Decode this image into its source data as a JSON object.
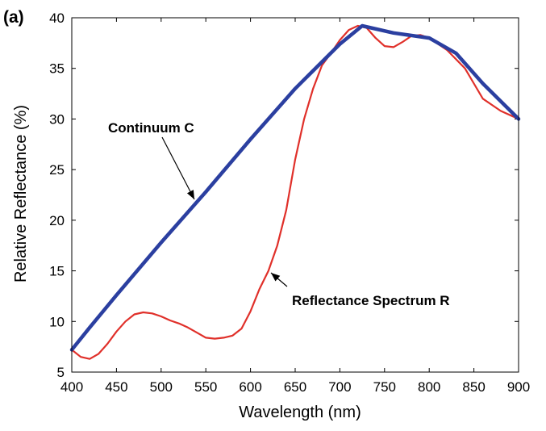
{
  "panel_label": "(a)",
  "chart_data": {
    "type": "line",
    "title": "",
    "xlabel": "Wavelength (nm)",
    "ylabel": "Relative Reflectance (%)",
    "xlim": [
      400,
      900
    ],
    "ylim": [
      5,
      40
    ],
    "xticks": [
      400,
      450,
      500,
      550,
      600,
      650,
      700,
      750,
      800,
      850,
      900
    ],
    "yticks": [
      5,
      10,
      15,
      20,
      25,
      30,
      35,
      40
    ],
    "grid": false,
    "legend": "none",
    "series": [
      {
        "key": "continuum",
        "color": "#2b3fa0",
        "points": [
          [
            400,
            7.2
          ],
          [
            420,
            9.4
          ],
          [
            450,
            12.6
          ],
          [
            500,
            17.8
          ],
          [
            550,
            22.8
          ],
          [
            600,
            28
          ],
          [
            650,
            33
          ],
          [
            700,
            37.4
          ],
          [
            725,
            39.2
          ],
          [
            760,
            38.5
          ],
          [
            800,
            38
          ],
          [
            830,
            36.5
          ],
          [
            860,
            33.5
          ],
          [
            900,
            30
          ]
        ]
      },
      {
        "key": "reflectance",
        "color": "#e0302a",
        "points": [
          [
            400,
            7.2
          ],
          [
            410,
            6.5
          ],
          [
            420,
            6.3
          ],
          [
            430,
            6.8
          ],
          [
            440,
            7.8
          ],
          [
            450,
            9
          ],
          [
            460,
            10
          ],
          [
            470,
            10.7
          ],
          [
            480,
            10.9
          ],
          [
            490,
            10.8
          ],
          [
            500,
            10.5
          ],
          [
            510,
            10.1
          ],
          [
            520,
            9.8
          ],
          [
            530,
            9.4
          ],
          [
            540,
            8.9
          ],
          [
            550,
            8.4
          ],
          [
            560,
            8.3
          ],
          [
            570,
            8.4
          ],
          [
            580,
            8.6
          ],
          [
            590,
            9.3
          ],
          [
            600,
            11
          ],
          [
            610,
            13.2
          ],
          [
            620,
            15
          ],
          [
            630,
            17.5
          ],
          [
            640,
            21
          ],
          [
            650,
            26
          ],
          [
            660,
            30
          ],
          [
            670,
            33
          ],
          [
            680,
            35.3
          ],
          [
            690,
            36.5
          ],
          [
            700,
            37.8
          ],
          [
            710,
            38.8
          ],
          [
            720,
            39.2
          ],
          [
            730,
            39
          ],
          [
            740,
            38
          ],
          [
            750,
            37.2
          ],
          [
            760,
            37.1
          ],
          [
            770,
            37.6
          ],
          [
            780,
            38.2
          ],
          [
            790,
            38.3
          ],
          [
            800,
            38
          ],
          [
            820,
            36.8
          ],
          [
            840,
            35
          ],
          [
            850,
            33.5
          ],
          [
            860,
            32
          ],
          [
            880,
            30.8
          ],
          [
            900,
            30
          ]
        ]
      }
    ],
    "annotations": [
      {
        "key": "continuum_label",
        "text": "Continuum C",
        "target": [
          540,
          21.5
        ]
      },
      {
        "key": "reflectance_label",
        "text": "Reflectance Spectrum R",
        "target": [
          622,
          15.5
        ]
      }
    ]
  }
}
